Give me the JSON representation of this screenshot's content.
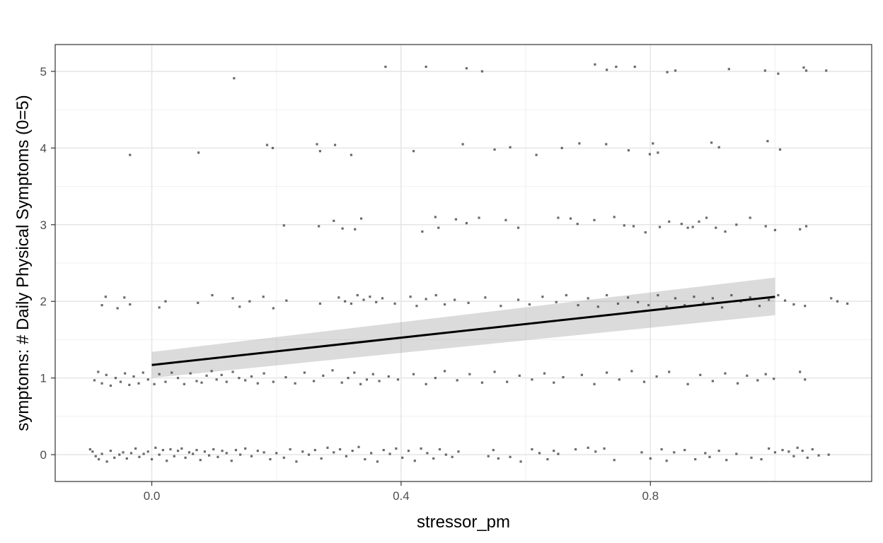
{
  "chart_data": {
    "type": "scatter",
    "title": "",
    "xlabel": "stressor_pm",
    "ylabel": "symptoms: # Daily Physical Symptoms (0=5)",
    "xlim": [
      -0.155,
      1.155
    ],
    "ylim": [
      -0.35,
      5.35
    ],
    "x_ticks": [
      "0.0",
      "0.4",
      "0.8"
    ],
    "x_tick_values": [
      0.0,
      0.4,
      0.8
    ],
    "y_ticks": [
      "0",
      "1",
      "2",
      "3",
      "4",
      "5"
    ],
    "y_tick_values": [
      0,
      1,
      2,
      3,
      4,
      5
    ],
    "grid": true,
    "jitter": {
      "x": 0.1,
      "y": 0.1
    },
    "points": [
      [
        -0.099,
        0.07
      ],
      [
        -0.095,
        0.04
      ],
      [
        -0.09,
        -0.02
      ],
      [
        -0.085,
        -0.06
      ],
      [
        -0.08,
        0.01
      ],
      [
        -0.072,
        -0.09
      ],
      [
        -0.066,
        0.05
      ],
      [
        -0.06,
        -0.04
      ],
      [
        -0.052,
        0.0
      ],
      [
        -0.046,
        0.03
      ],
      [
        -0.04,
        -0.05
      ],
      [
        -0.033,
        0.02
      ],
      [
        -0.026,
        0.08
      ],
      [
        -0.02,
        -0.03
      ],
      [
        -0.013,
        0.01
      ],
      [
        -0.006,
        0.04
      ],
      [
        0.0,
        -0.06
      ],
      [
        0.006,
        0.09
      ],
      [
        0.012,
        0.0
      ],
      [
        0.018,
        0.06
      ],
      [
        0.024,
        -0.08
      ],
      [
        0.03,
        0.07
      ],
      [
        0.036,
        -0.02
      ],
      [
        0.042,
        0.05
      ],
      [
        0.048,
        0.08
      ],
      [
        0.054,
        -0.04
      ],
      [
        0.06,
        0.03
      ],
      [
        0.066,
        0.01
      ],
      [
        0.072,
        0.06
      ],
      [
        0.078,
        -0.07
      ],
      [
        0.085,
        0.04
      ],
      [
        0.092,
        -0.01
      ],
      [
        0.099,
        0.07
      ],
      [
        0.106,
        -0.03
      ],
      [
        0.113,
        0.05
      ],
      [
        0.12,
        0.02
      ],
      [
        0.128,
        -0.08
      ],
      [
        0.135,
        0.06
      ],
      [
        0.142,
        0.0
      ],
      [
        0.15,
        0.08
      ],
      [
        0.16,
        -0.02
      ],
      [
        0.17,
        0.05
      ],
      [
        0.18,
        0.03
      ],
      [
        0.19,
        -0.06
      ],
      [
        0.2,
        0.02
      ],
      [
        0.212,
        -0.04
      ],
      [
        0.222,
        0.07
      ],
      [
        0.232,
        -0.09
      ],
      [
        0.242,
        0.04
      ],
      [
        0.252,
        0.0
      ],
      [
        0.262,
        0.06
      ],
      [
        0.272,
        -0.05
      ],
      [
        0.282,
        0.09
      ],
      [
        0.292,
        0.03
      ],
      [
        0.302,
        0.07
      ],
      [
        0.312,
        -0.02
      ],
      [
        0.322,
        0.05
      ],
      [
        0.332,
        0.1
      ],
      [
        0.342,
        -0.06
      ],
      [
        0.352,
        0.02
      ],
      [
        0.362,
        -0.09
      ],
      [
        0.372,
        0.06
      ],
      [
        0.382,
        0.01
      ],
      [
        0.392,
        0.08
      ],
      [
        0.402,
        -0.04
      ],
      [
        0.412,
        0.05
      ],
      [
        0.422,
        -0.08
      ],
      [
        0.432,
        0.08
      ],
      [
        0.442,
        0.02
      ],
      [
        0.452,
        -0.05
      ],
      [
        0.462,
        0.07
      ],
      [
        0.472,
        0.0
      ],
      [
        0.482,
        -0.03
      ],
      [
        0.492,
        0.04
      ],
      [
        0.54,
        -0.02
      ],
      [
        0.548,
        0.06
      ],
      [
        0.556,
        -0.05
      ],
      [
        0.575,
        -0.03
      ],
      [
        0.592,
        -0.09
      ],
      [
        0.61,
        0.07
      ],
      [
        0.622,
        0.02
      ],
      [
        0.635,
        -0.06
      ],
      [
        0.645,
        0.05
      ],
      [
        0.652,
        0.01
      ],
      [
        0.68,
        0.07
      ],
      [
        0.7,
        0.09
      ],
      [
        0.712,
        0.04
      ],
      [
        0.726,
        0.08
      ],
      [
        0.742,
        -0.07
      ],
      [
        0.786,
        0.03
      ],
      [
        0.8,
        -0.05
      ],
      [
        0.818,
        0.07
      ],
      [
        0.826,
        -0.08
      ],
      [
        0.838,
        0.03
      ],
      [
        0.855,
        0.06
      ],
      [
        0.872,
        -0.06
      ],
      [
        0.888,
        0.02
      ],
      [
        0.895,
        -0.03
      ],
      [
        0.91,
        0.05
      ],
      [
        0.922,
        -0.07
      ],
      [
        0.938,
        0.01
      ],
      [
        0.962,
        -0.04
      ],
      [
        0.978,
        -0.06
      ],
      [
        0.99,
        0.08
      ],
      [
        1.0,
        0.03
      ],
      [
        1.012,
        0.06
      ],
      [
        1.022,
        0.04
      ],
      [
        1.03,
        -0.02
      ],
      [
        1.036,
        0.09
      ],
      [
        1.044,
        0.05
      ],
      [
        1.052,
        -0.04
      ],
      [
        1.06,
        0.07
      ],
      [
        1.07,
        -0.01
      ],
      [
        1.086,
        0.0
      ],
      [
        -0.092,
        0.97
      ],
      [
        -0.086,
        1.08
      ],
      [
        -0.08,
        0.93
      ],
      [
        -0.073,
        1.04
      ],
      [
        -0.066,
        0.9
      ],
      [
        -0.058,
        1.0
      ],
      [
        -0.05,
        0.95
      ],
      [
        -0.043,
        1.06
      ],
      [
        -0.036,
        0.91
      ],
      [
        -0.029,
        1.02
      ],
      [
        -0.021,
        0.93
      ],
      [
        -0.014,
        1.07
      ],
      [
        -0.006,
        0.98
      ],
      [
        0.004,
        0.92
      ],
      [
        0.012,
        1.05
      ],
      [
        0.022,
        0.95
      ],
      [
        0.032,
        1.07
      ],
      [
        0.042,
        1.0
      ],
      [
        0.052,
        0.92
      ],
      [
        0.062,
        1.06
      ],
      [
        0.072,
        0.96
      ],
      [
        0.08,
        0.94
      ],
      [
        0.088,
        1.03
      ],
      [
        0.096,
        1.09
      ],
      [
        0.104,
        0.98
      ],
      [
        0.112,
        1.04
      ],
      [
        0.12,
        0.95
      ],
      [
        0.13,
        1.08
      ],
      [
        0.14,
        1.0
      ],
      [
        0.15,
        0.97
      ],
      [
        0.16,
        1.02
      ],
      [
        0.17,
        0.93
      ],
      [
        0.18,
        1.06
      ],
      [
        0.195,
        0.95
      ],
      [
        0.215,
        1.01
      ],
      [
        0.23,
        0.93
      ],
      [
        0.245,
        1.07
      ],
      [
        0.26,
        0.96
      ],
      [
        0.275,
        1.03
      ],
      [
        0.29,
        1.1
      ],
      [
        0.305,
        0.94
      ],
      [
        0.315,
        1.0
      ],
      [
        0.325,
        1.07
      ],
      [
        0.335,
        0.92
      ],
      [
        0.345,
        0.98
      ],
      [
        0.355,
        1.05
      ],
      [
        0.365,
        0.96
      ],
      [
        0.38,
        1.02
      ],
      [
        0.395,
        0.98
      ],
      [
        0.42,
        1.05
      ],
      [
        0.44,
        0.92
      ],
      [
        0.455,
        1.0
      ],
      [
        0.47,
        1.09
      ],
      [
        0.49,
        0.97
      ],
      [
        0.51,
        1.05
      ],
      [
        0.53,
        0.94
      ],
      [
        0.55,
        1.08
      ],
      [
        0.57,
        0.95
      ],
      [
        0.59,
        1.03
      ],
      [
        0.61,
        0.98
      ],
      [
        0.63,
        1.06
      ],
      [
        0.645,
        0.94
      ],
      [
        0.66,
        1.01
      ],
      [
        0.69,
        1.04
      ],
      [
        0.71,
        0.92
      ],
      [
        0.73,
        1.07
      ],
      [
        0.75,
        0.98
      ],
      [
        0.77,
        1.09
      ],
      [
        0.79,
        0.95
      ],
      [
        0.81,
        1.02
      ],
      [
        0.83,
        1.08
      ],
      [
        0.86,
        0.92
      ],
      [
        0.88,
        1.04
      ],
      [
        0.9,
        0.96
      ],
      [
        0.92,
        1.06
      ],
      [
        0.94,
        0.93
      ],
      [
        0.955,
        1.03
      ],
      [
        0.972,
        0.97
      ],
      [
        0.985,
        1.05
      ],
      [
        0.998,
        0.99
      ],
      [
        1.04,
        1.08
      ],
      [
        1.048,
        0.98
      ],
      [
        -0.08,
        1.95
      ],
      [
        -0.074,
        2.06
      ],
      [
        -0.055,
        1.91
      ],
      [
        -0.044,
        2.05
      ],
      [
        -0.035,
        1.96
      ],
      [
        0.012,
        1.92
      ],
      [
        0.022,
        2.0
      ],
      [
        0.074,
        1.98
      ],
      [
        0.097,
        2.08
      ],
      [
        0.13,
        2.04
      ],
      [
        0.141,
        1.93
      ],
      [
        0.157,
        2.0
      ],
      [
        0.179,
        2.06
      ],
      [
        0.195,
        1.91
      ],
      [
        0.216,
        2.01
      ],
      [
        0.27,
        1.97
      ],
      [
        0.3,
        2.05
      ],
      [
        0.31,
        2.0
      ],
      [
        0.32,
        1.97
      ],
      [
        0.33,
        2.08
      ],
      [
        0.34,
        2.02
      ],
      [
        0.35,
        2.06
      ],
      [
        0.36,
        1.99
      ],
      [
        0.37,
        2.04
      ],
      [
        0.39,
        1.97
      ],
      [
        0.415,
        2.06
      ],
      [
        0.425,
        1.94
      ],
      [
        0.44,
        2.03
      ],
      [
        0.456,
        2.08
      ],
      [
        0.47,
        1.96
      ],
      [
        0.486,
        2.02
      ],
      [
        0.508,
        1.98
      ],
      [
        0.535,
        2.05
      ],
      [
        0.56,
        1.94
      ],
      [
        0.588,
        2.02
      ],
      [
        0.606,
        1.96
      ],
      [
        0.627,
        2.06
      ],
      [
        0.649,
        1.99
      ],
      [
        0.665,
        2.08
      ],
      [
        0.684,
        1.95
      ],
      [
        0.7,
        2.04
      ],
      [
        0.716,
        1.93
      ],
      [
        0.73,
        2.08
      ],
      [
        0.748,
        1.97
      ],
      [
        0.764,
        2.05
      ],
      [
        0.78,
        1.99
      ],
      [
        0.797,
        1.95
      ],
      [
        0.812,
        2.08
      ],
      [
        0.826,
        1.93
      ],
      [
        0.84,
        2.04
      ],
      [
        0.855,
        1.95
      ],
      [
        0.87,
        2.06
      ],
      [
        0.885,
        1.98
      ],
      [
        0.9,
        2.04
      ],
      [
        0.915,
        1.92
      ],
      [
        0.93,
        2.08
      ],
      [
        0.945,
        2.0
      ],
      [
        0.96,
        2.05
      ],
      [
        0.975,
        1.94
      ],
      [
        0.99,
        2.02
      ],
      [
        1.005,
        2.08
      ],
      [
        1.016,
        2.01
      ],
      [
        1.03,
        1.96
      ],
      [
        1.048,
        1.94
      ],
      [
        1.09,
        2.04
      ],
      [
        1.1,
        2.0
      ],
      [
        1.116,
        1.97
      ],
      [
        0.212,
        2.99
      ],
      [
        0.268,
        2.98
      ],
      [
        0.292,
        3.05
      ],
      [
        0.306,
        2.95
      ],
      [
        0.326,
        2.94
      ],
      [
        0.336,
        3.08
      ],
      [
        0.434,
        2.91
      ],
      [
        0.455,
        3.1
      ],
      [
        0.46,
        2.96
      ],
      [
        0.488,
        3.07
      ],
      [
        0.505,
        3.02
      ],
      [
        0.525,
        3.09
      ],
      [
        0.568,
        3.06
      ],
      [
        0.588,
        2.96
      ],
      [
        0.652,
        3.09
      ],
      [
        0.672,
        3.08
      ],
      [
        0.683,
        3.01
      ],
      [
        0.71,
        3.06
      ],
      [
        0.742,
        3.1
      ],
      [
        0.758,
        2.99
      ],
      [
        0.773,
        2.98
      ],
      [
        0.792,
        2.9
      ],
      [
        0.815,
        2.97
      ],
      [
        0.83,
        3.04
      ],
      [
        0.85,
        3.01
      ],
      [
        0.86,
        2.96
      ],
      [
        0.868,
        2.97
      ],
      [
        0.878,
        3.04
      ],
      [
        0.89,
        3.09
      ],
      [
        0.905,
        2.96
      ],
      [
        0.92,
        2.91
      ],
      [
        0.938,
        3.0
      ],
      [
        0.96,
        3.09
      ],
      [
        0.985,
        2.98
      ],
      [
        1.0,
        2.93
      ],
      [
        1.04,
        2.94
      ],
      [
        1.05,
        2.98
      ],
      [
        -0.035,
        3.91
      ],
      [
        0.075,
        3.94
      ],
      [
        0.185,
        4.04
      ],
      [
        0.194,
        4.0
      ],
      [
        0.265,
        4.05
      ],
      [
        0.27,
        3.96
      ],
      [
        0.294,
        4.04
      ],
      [
        0.32,
        3.91
      ],
      [
        0.42,
        3.96
      ],
      [
        0.499,
        4.05
      ],
      [
        0.55,
        3.98
      ],
      [
        0.575,
        4.01
      ],
      [
        0.617,
        3.91
      ],
      [
        0.658,
        4.0
      ],
      [
        0.686,
        4.06
      ],
      [
        0.729,
        4.05
      ],
      [
        0.765,
        3.97
      ],
      [
        0.799,
        3.92
      ],
      [
        0.804,
        4.06
      ],
      [
        0.812,
        3.94
      ],
      [
        0.898,
        4.07
      ],
      [
        0.91,
        4.01
      ],
      [
        0.988,
        4.09
      ],
      [
        1.008,
        3.98
      ],
      [
        0.132,
        4.91
      ],
      [
        0.375,
        5.06
      ],
      [
        0.44,
        5.06
      ],
      [
        0.505,
        5.04
      ],
      [
        0.53,
        5.0
      ],
      [
        0.711,
        5.09
      ],
      [
        0.73,
        5.02
      ],
      [
        0.745,
        5.06
      ],
      [
        0.775,
        5.06
      ],
      [
        0.827,
        4.99
      ],
      [
        0.84,
        5.01
      ],
      [
        0.926,
        5.03
      ],
      [
        0.984,
        5.01
      ],
      [
        1.005,
        4.97
      ],
      [
        1.046,
        5.05
      ],
      [
        1.05,
        5.01
      ],
      [
        1.082,
        5.01
      ]
    ],
    "fit": {
      "method": "lm",
      "x": [
        0.0,
        1.0
      ],
      "y": [
        1.17,
        2.06
      ],
      "ci_lower": [
        1.0,
        1.82
      ],
      "ci_upper": [
        1.34,
        2.31
      ]
    }
  }
}
